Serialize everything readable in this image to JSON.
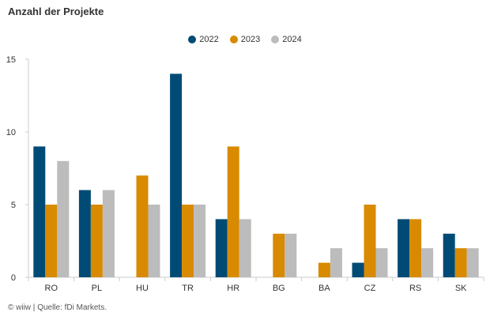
{
  "title": "Anzahl der Projekte",
  "source": "© wiiw | Quelle: fDi Markets.",
  "chart_data": {
    "type": "bar",
    "categories": [
      "RO",
      "PL",
      "HU",
      "TR",
      "HR",
      "BG",
      "BA",
      "CZ",
      "RS",
      "SK"
    ],
    "series": [
      {
        "name": "2022",
        "color": "#004b76",
        "values": [
          9,
          6,
          0,
          14,
          4,
          0,
          0,
          1,
          4,
          3
        ]
      },
      {
        "name": "2023",
        "color": "#d88a00",
        "values": [
          5,
          5,
          7,
          5,
          9,
          3,
          1,
          5,
          4,
          2
        ]
      },
      {
        "name": "2024",
        "color": "#bcbcbc",
        "values": [
          8,
          6,
          5,
          5,
          4,
          3,
          2,
          2,
          2,
          2
        ]
      }
    ],
    "yticks": [
      0,
      5,
      10,
      15
    ],
    "ylim": [
      0,
      15
    ],
    "grid": false,
    "legend_position": "top-center"
  }
}
